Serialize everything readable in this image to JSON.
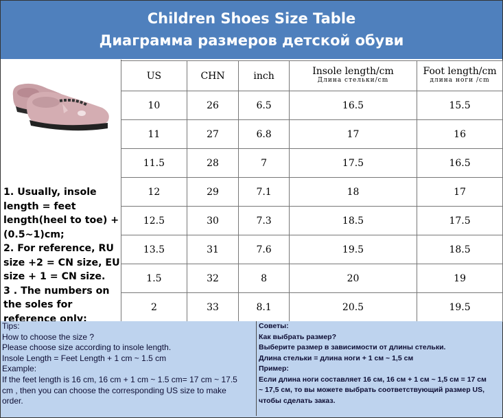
{
  "header": {
    "title_en": "Children Shoes Size Table",
    "title_ru": "Диаграмма размеров детской обуви"
  },
  "notes": [
    "1. Usually, insole length = feet length(heel to toe) + (0.5~1)cm;",
    "2. For reference, RU size +2 = CN size, EU size + 1 = CN size.",
    "3 . The numbers on the soles for reference only;"
  ],
  "table": {
    "headers": {
      "us": "US",
      "chn": "CHN",
      "inch": "inch",
      "insole_en": "Insole length/cm",
      "insole_ru": "Длина стельки/cm",
      "foot_en": "Foot length/cm",
      "foot_ru": "длина ноги /cm"
    },
    "rows": [
      [
        "10",
        "26",
        "6.5",
        "16.5",
        "15.5"
      ],
      [
        "11",
        "27",
        "6.8",
        "17",
        "16"
      ],
      [
        "11.5",
        "28",
        "7",
        "17.5",
        "16.5"
      ],
      [
        "12",
        "29",
        "7.1",
        "18",
        "17"
      ],
      [
        "12.5",
        "30",
        "7.3",
        "18.5",
        "17.5"
      ],
      [
        "13.5",
        "31",
        "7.6",
        "19.5",
        "18.5"
      ],
      [
        "1.5",
        "32",
        "8",
        "20",
        "19"
      ],
      [
        "2",
        "33",
        "8.1",
        "20.5",
        "19.5"
      ]
    ]
  },
  "tips_en": [
    "Tips:",
    "How to choose the size ?",
    "Please choose size according to insole length.",
    "Insole Length = Feet Length + 1 cm ~ 1.5 cm",
    "Example:",
    "If the feet length is 16 cm, 16 cm + 1 cm ~ 1.5 cm= 17 cm ~ 17.5",
    "cm , then you can choose the corresponding US size to make",
    "order."
  ],
  "tips_ru": [
    "Советы:",
    "Как выбрать размер?",
    "Выберите размер в зависимости от длины стельки.",
    "Длина стельки = длина ноги + 1 см ~ 1,5 см",
    "Пример:",
    "Если длина ноги составляет 16 см, 16 см + 1 см ~ 1,5 см = 17 см",
    "~ 17,5 см, то вы можете выбрать соответствующий размер US,",
    "чтобы сделать заказ."
  ],
  "colors": {
    "header_bg": "#4f80bd",
    "tips_bg": "#bed3ee"
  }
}
